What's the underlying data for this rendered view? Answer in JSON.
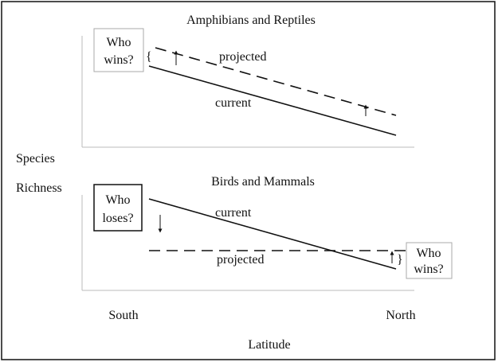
{
  "y_axis_label": [
    "Species",
    "Richness"
  ],
  "x_axis": {
    "label": "Latitude",
    "left": "South",
    "right": "North"
  },
  "panels": [
    {
      "title": "Amphibians and Reptiles",
      "box": [
        "Who",
        "wins?"
      ],
      "projected": "projected",
      "current": "current"
    },
    {
      "title": "Birds and Mammals",
      "box": [
        "Who",
        "loses?"
      ],
      "current": "current",
      "projected": "projected",
      "box2": [
        "Who",
        "wins?"
      ]
    }
  ]
}
